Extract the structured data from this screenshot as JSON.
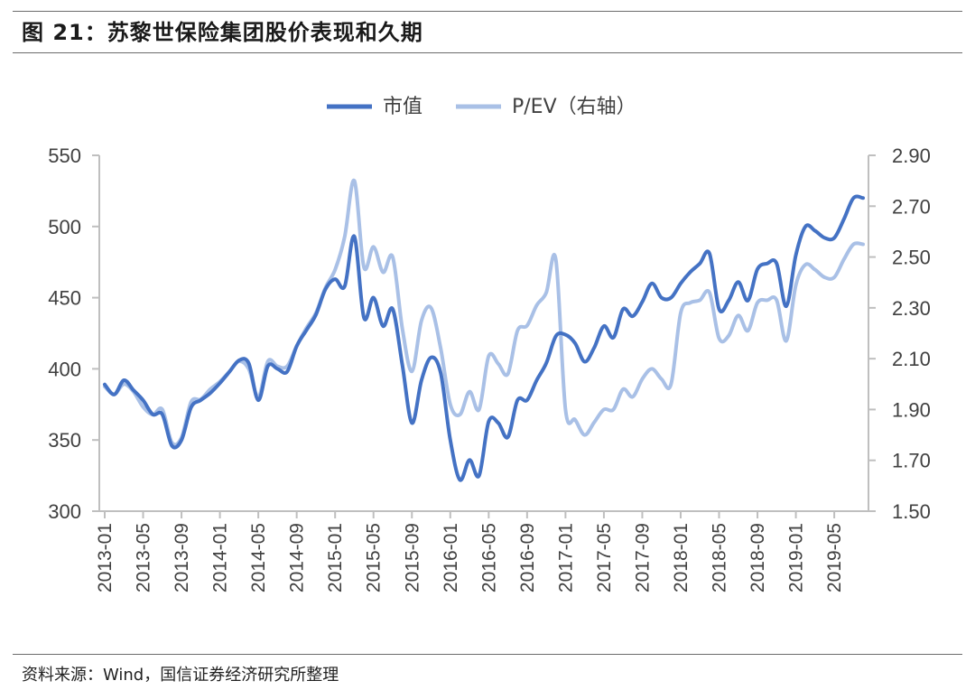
{
  "title": "图 21：苏黎世保险集团股价表现和久期",
  "source": "资料来源：Wind，国信证券经济研究所整理",
  "chart_data": {
    "type": "line",
    "colors": {
      "market_cap": "#4472c4",
      "pev": "#a9c0e6",
      "axis": "#bfbfbf"
    },
    "legend": {
      "placement": "top-center"
    },
    "grid": false,
    "x_tick_labels": [
      "2013-01",
      "2013-05",
      "2013-09",
      "2014-01",
      "2014-05",
      "2014-09",
      "2015-01",
      "2015-05",
      "2015-09",
      "2016-01",
      "2016-05",
      "2016-09",
      "2017-01",
      "2017-05",
      "2017-09",
      "2018-01",
      "2018-05",
      "2018-09",
      "2019-01",
      "2019-05"
    ],
    "x_range": [
      "2013-01",
      "2019-08"
    ],
    "y_left": {
      "range": [
        300,
        550
      ],
      "ticks": [
        "300",
        "350",
        "400",
        "450",
        "500",
        "550"
      ]
    },
    "y_right": {
      "range": [
        1.5,
        2.9
      ],
      "ticks": [
        "1.50",
        "1.70",
        "1.90",
        "2.10",
        "2.30",
        "2.50",
        "2.70",
        "2.90"
      ]
    },
    "series": [
      {
        "name": "市值",
        "axis": "left",
        "x": [
          "2013-01",
          "2013-02",
          "2013-03",
          "2013-04",
          "2013-05",
          "2013-06",
          "2013-07",
          "2013-08",
          "2013-09",
          "2013-10",
          "2013-11",
          "2013-12",
          "2014-01",
          "2014-02",
          "2014-03",
          "2014-04",
          "2014-05",
          "2014-06",
          "2014-07",
          "2014-08",
          "2014-09",
          "2014-10",
          "2014-11",
          "2014-12",
          "2015-01",
          "2015-02",
          "2015-03",
          "2015-04",
          "2015-05",
          "2015-06",
          "2015-07",
          "2015-08",
          "2015-09",
          "2015-10",
          "2015-11",
          "2015-12",
          "2016-01",
          "2016-02",
          "2016-03",
          "2016-04",
          "2016-05",
          "2016-06",
          "2016-07",
          "2016-08",
          "2016-09",
          "2016-10",
          "2016-11",
          "2016-12",
          "2017-01",
          "2017-02",
          "2017-03",
          "2017-04",
          "2017-05",
          "2017-06",
          "2017-07",
          "2017-08",
          "2017-09",
          "2017-10",
          "2017-11",
          "2017-12",
          "2018-01",
          "2018-02",
          "2018-03",
          "2018-04",
          "2018-05",
          "2018-06",
          "2018-07",
          "2018-08",
          "2018-09",
          "2018-10",
          "2018-11",
          "2018-12",
          "2019-01",
          "2019-02",
          "2019-03",
          "2019-04",
          "2019-05",
          "2019-06",
          "2019-07",
          "2019-08"
        ],
        "values": [
          389,
          382,
          392,
          385,
          378,
          368,
          368,
          346,
          350,
          373,
          378,
          383,
          390,
          398,
          406,
          404,
          378,
          402,
          400,
          398,
          416,
          427,
          438,
          456,
          463,
          458,
          493,
          436,
          450,
          430,
          442,
          403,
          362,
          392,
          408,
          397,
          350,
          322,
          336,
          325,
          363,
          362,
          352,
          378,
          378,
          392,
          404,
          423,
          424,
          418,
          405,
          415,
          430,
          422,
          442,
          437,
          447,
          460,
          450,
          450,
          460,
          468,
          474,
          481,
          442,
          448,
          461,
          448,
          470,
          474,
          474,
          444,
          480,
          500,
          497,
          492,
          492,
          505,
          520,
          520
        ]
      },
      {
        "name": "P/EV（右轴）",
        "axis": "right",
        "x": [
          "2013-01",
          "2013-02",
          "2013-03",
          "2013-04",
          "2013-05",
          "2013-06",
          "2013-07",
          "2013-08",
          "2013-09",
          "2013-10",
          "2013-11",
          "2013-12",
          "2014-01",
          "2014-02",
          "2014-03",
          "2014-04",
          "2014-05",
          "2014-06",
          "2014-07",
          "2014-08",
          "2014-09",
          "2014-10",
          "2014-11",
          "2014-12",
          "2015-01",
          "2015-02",
          "2015-03",
          "2015-04",
          "2015-05",
          "2015-06",
          "2015-07",
          "2015-08",
          "2015-09",
          "2015-10",
          "2015-11",
          "2015-12",
          "2016-01",
          "2016-02",
          "2016-03",
          "2016-04",
          "2016-05",
          "2016-06",
          "2016-07",
          "2016-08",
          "2016-09",
          "2016-10",
          "2016-11",
          "2016-12",
          "2017-01",
          "2017-02",
          "2017-03",
          "2017-04",
          "2017-05",
          "2017-06",
          "2017-07",
          "2017-08",
          "2017-09",
          "2017-10",
          "2017-11",
          "2017-12",
          "2018-01",
          "2018-02",
          "2018-03",
          "2018-04",
          "2018-05",
          "2018-06",
          "2018-07",
          "2018-08",
          "2018-09",
          "2018-10",
          "2018-11",
          "2018-12",
          "2019-01",
          "2019-02",
          "2019-03",
          "2019-04",
          "2019-05",
          "2019-06",
          "2019-07",
          "2019-08"
        ],
        "values": [
          1.99,
          1.96,
          2.0,
          1.97,
          1.91,
          1.88,
          1.9,
          1.77,
          1.79,
          1.93,
          1.94,
          1.98,
          2.01,
          2.05,
          2.09,
          2.06,
          1.95,
          2.09,
          2.07,
          2.07,
          2.15,
          2.22,
          2.28,
          2.38,
          2.45,
          2.58,
          2.8,
          2.46,
          2.54,
          2.44,
          2.5,
          2.22,
          2.05,
          2.25,
          2.3,
          2.14,
          1.92,
          1.88,
          1.97,
          1.9,
          2.11,
          2.08,
          2.04,
          2.21,
          2.23,
          2.31,
          2.36,
          2.49,
          1.9,
          1.86,
          1.8,
          1.85,
          1.9,
          1.9,
          1.98,
          1.95,
          2.02,
          2.06,
          2.02,
          2.0,
          2.28,
          2.32,
          2.33,
          2.36,
          2.18,
          2.19,
          2.27,
          2.21,
          2.32,
          2.33,
          2.33,
          2.17,
          2.39,
          2.47,
          2.45,
          2.42,
          2.42,
          2.49,
          2.55,
          2.55
        ]
      }
    ]
  }
}
